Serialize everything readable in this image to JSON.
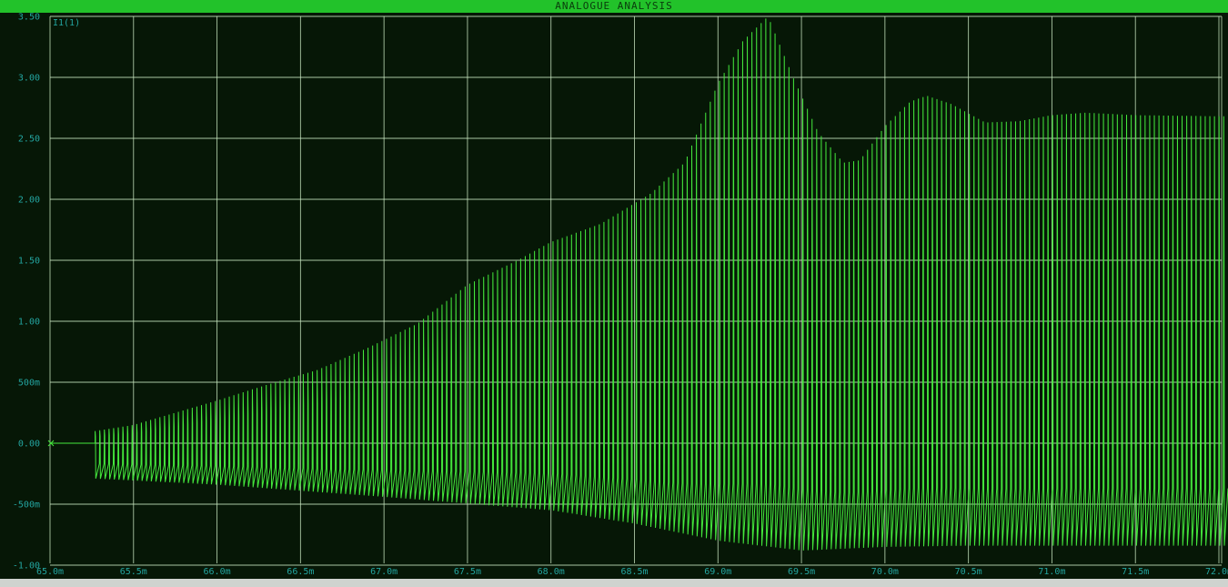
{
  "window": {
    "title": "ANALOGUE ANALYSIS"
  },
  "colors": {
    "background": "#061706",
    "grid": "#c8e6c0",
    "trace": "#44e83c",
    "tick_text": "#23a5a0",
    "title_bar": "#22c22a"
  },
  "chart_data": {
    "type": "line",
    "title": "ANALOGUE ANALYSIS",
    "xlabel": "",
    "ylabel": "",
    "xlim": [
      65.0,
      72.05
    ],
    "ylim": [
      -1.0,
      3.55
    ],
    "x_unit": "ms",
    "grid": true,
    "trace_label": "I1(1)",
    "x_tick_labels": [
      "65.0m",
      "65.5m",
      "66.0m",
      "66.5m",
      "67.0m",
      "67.5m",
      "68.0m",
      "68.5m",
      "69.0m",
      "69.5m",
      "70.0m",
      "70.5m",
      "71.0m",
      "71.5m",
      "72.0m"
    ],
    "y_tick_labels": [
      "-1.00",
      "-500m",
      "0.00",
      "500m",
      "1.00",
      "1.50",
      "2.00",
      "2.50",
      "3.00",
      "3.50"
    ],
    "series": [
      {
        "name": "I1(1)",
        "signal_start_ms": 65.27,
        "period_ms": 0.0277,
        "positive_peak_envelope": {
          "x": [
            65.27,
            65.5,
            65.8,
            66.0,
            66.3,
            66.6,
            66.9,
            67.2,
            67.5,
            67.8,
            68.0,
            68.3,
            68.6,
            68.8,
            69.0,
            69.15,
            69.3,
            69.45,
            69.6,
            69.75,
            69.85,
            70.0,
            70.15,
            70.25,
            70.4,
            70.6,
            70.8,
            71.0,
            71.2,
            71.5,
            72.05
          ],
          "y": [
            0.1,
            0.15,
            0.27,
            0.35,
            0.48,
            0.6,
            0.78,
            0.98,
            1.3,
            1.5,
            1.65,
            1.8,
            2.05,
            2.3,
            2.95,
            3.3,
            3.5,
            3.0,
            2.55,
            2.3,
            2.32,
            2.6,
            2.8,
            2.85,
            2.78,
            2.63,
            2.64,
            2.69,
            2.71,
            2.69,
            2.68
          ]
        },
        "negative_peak_envelope": {
          "x": [
            65.27,
            66.0,
            67.0,
            68.0,
            68.5,
            69.0,
            69.5,
            70.0,
            70.5,
            71.0,
            72.05
          ],
          "y": [
            -0.29,
            -0.34,
            -0.44,
            -0.55,
            -0.66,
            -0.8,
            -0.88,
            -0.85,
            -0.84,
            -0.84,
            -0.84
          ]
        }
      }
    ]
  }
}
